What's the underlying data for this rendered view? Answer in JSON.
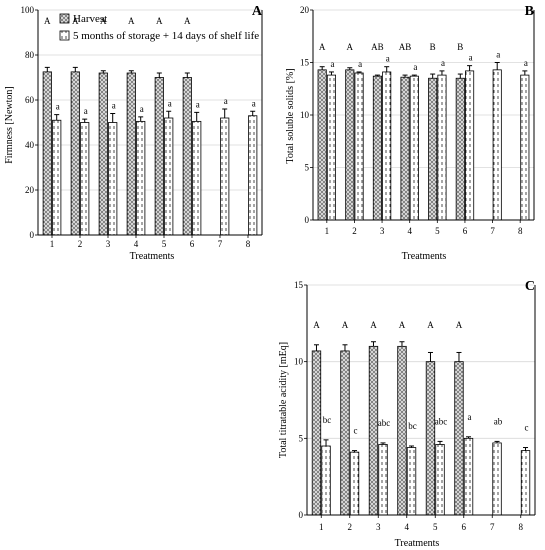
{
  "legend": {
    "harvest": "Harvest",
    "storage": "5 months of storage + 14 days of shelf life"
  },
  "colors": {
    "axis": "#000000",
    "grid": "#d9d9d9",
    "bar_edge": "#000000",
    "harvest_fill": "#8c8c8c",
    "storage_fill": "#ffffff"
  },
  "chart_data": [
    {
      "panel": "A",
      "type": "bar",
      "xlabel": "Treatments",
      "ylabel": "Firmness [Newton]",
      "ylim": [
        0,
        100
      ],
      "yticks": [
        0,
        20,
        40,
        60,
        80,
        100
      ],
      "categories": [
        "1",
        "2",
        "3",
        "4",
        "5",
        "6",
        "7",
        "8"
      ],
      "series": [
        {
          "name": "Harvest",
          "values": [
            72.5,
            72.5,
            72,
            72,
            70,
            70,
            null,
            null
          ],
          "errors": [
            2,
            2,
            1,
            1,
            2,
            2,
            null,
            null
          ],
          "letters": [
            "A",
            "A",
            "A",
            "A",
            "A",
            "A",
            "",
            ""
          ]
        },
        {
          "name": "5 months of storage + 14 days of shelf life",
          "values": [
            51,
            50,
            50,
            50.5,
            52,
            50.5,
            52,
            53
          ],
          "errors": [
            2.5,
            1.5,
            4,
            2,
            3,
            4,
            4,
            2
          ],
          "letters": [
            "a",
            "a",
            "a",
            "a",
            "a",
            "a",
            "a",
            "a"
          ]
        }
      ],
      "grid": true
    },
    {
      "panel": "B",
      "type": "bar",
      "xlabel": "Treatments",
      "ylabel": "Total soluble solids [%]",
      "ylim": [
        0,
        20
      ],
      "yticks": [
        0,
        5,
        10,
        15,
        20
      ],
      "categories": [
        "1",
        "2",
        "3",
        "4",
        "5",
        "6",
        "7",
        "8"
      ],
      "series": [
        {
          "name": "Harvest",
          "values": [
            14.3,
            14.3,
            13.7,
            13.6,
            13.5,
            13.5,
            null,
            null
          ],
          "errors": [
            0.3,
            0.2,
            0.1,
            0.2,
            0.4,
            0.4,
            null,
            null
          ],
          "letters": [
            "A",
            "A",
            "AB",
            "AB",
            "B",
            "B",
            "",
            ""
          ]
        },
        {
          "name": "5 months of storage + 14 days of shelf life",
          "values": [
            13.8,
            14.0,
            14.1,
            13.7,
            13.8,
            14.2,
            14.3,
            13.8
          ],
          "errors": [
            0.3,
            0.1,
            0.5,
            0.1,
            0.4,
            0.5,
            0.7,
            0.4
          ],
          "letters": [
            "a",
            "a",
            "a",
            "a",
            "a",
            "a",
            "a",
            "a"
          ]
        }
      ],
      "grid": true
    },
    {
      "panel": "C",
      "type": "bar",
      "xlabel": "Treatments",
      "ylabel": "Total titratable acidity [mEq]",
      "ylim": [
        0,
        15
      ],
      "yticks": [
        0,
        5,
        10,
        15
      ],
      "categories": [
        "1",
        "2",
        "3",
        "4",
        "5",
        "6",
        "7",
        "8"
      ],
      "series": [
        {
          "name": "Harvest",
          "values": [
            10.7,
            10.7,
            11.0,
            11.0,
            10.0,
            10.0,
            null,
            null
          ],
          "errors": [
            0.4,
            0.4,
            0.3,
            0.3,
            0.6,
            0.6,
            null,
            null
          ],
          "letters": [
            "A",
            "A",
            "A",
            "A",
            "A",
            "A",
            "",
            ""
          ]
        },
        {
          "name": "5 months of storage + 14 days of shelf life",
          "values": [
            4.5,
            4.1,
            4.6,
            4.4,
            4.6,
            5.0,
            4.7,
            4.2
          ],
          "errors": [
            0.4,
            0.1,
            0.1,
            0.1,
            0.2,
            0.1,
            0.1,
            0.2
          ],
          "letters": [
            "bc",
            "c",
            "abc",
            "bc",
            "abc",
            "a",
            "ab",
            "c"
          ]
        }
      ],
      "grid": true
    }
  ]
}
